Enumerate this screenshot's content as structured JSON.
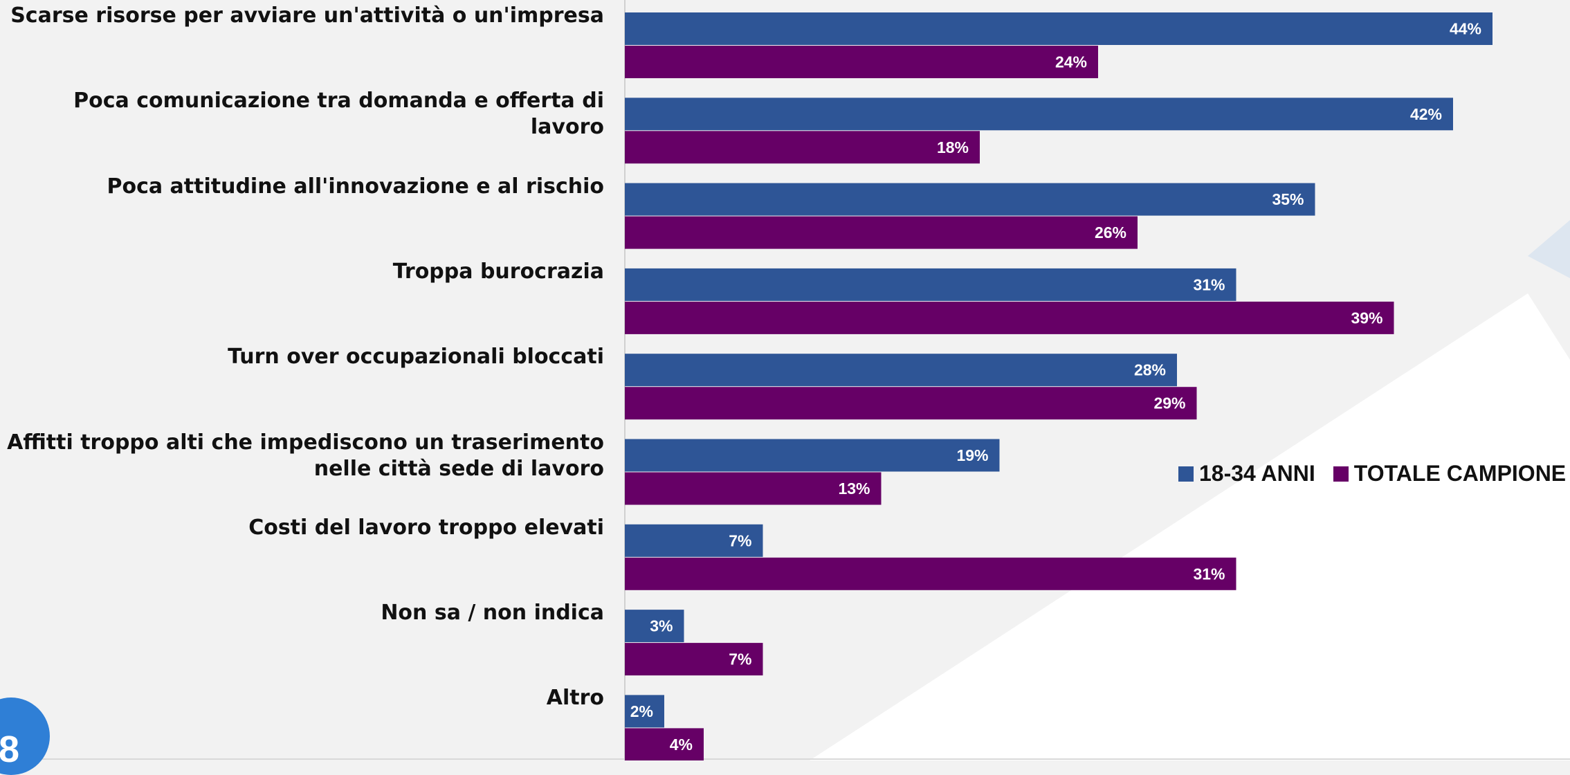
{
  "page_number": "8",
  "colors": {
    "series_1": "#2e5596",
    "series_2": "#660066",
    "background": "#f2f2f2",
    "badge": "#2f7fd6"
  },
  "chart_data": {
    "type": "bar",
    "orientation": "horizontal",
    "title": "",
    "xlabel": "",
    "ylabel": "",
    "categories": [
      "Scarse risorse per avviare un'attività o un'impresa",
      "Poca comunicazione tra domanda e offerta di lavoro",
      "Poca attitudine all'innovazione e al rischio",
      "Troppa burocrazia",
      "Turn over occupazionali bloccati",
      "Affitti troppo alti che impediscono un traserimento nelle città sede di lavoro",
      "Costi del lavoro troppo elevati",
      "Non sa / non indica",
      "Altro"
    ],
    "series": [
      {
        "name": "18-34 ANNI",
        "color": "#2e5596",
        "values": [
          44,
          42,
          35,
          31,
          28,
          19,
          7,
          3,
          2
        ]
      },
      {
        "name": "TOTALE CAMPIONE",
        "color": "#660066",
        "values": [
          24,
          18,
          26,
          39,
          29,
          13,
          31,
          7,
          4
        ]
      }
    ],
    "value_suffix": "%",
    "xlim": [
      0,
      48
    ],
    "legend_position": "right",
    "grid": false
  }
}
